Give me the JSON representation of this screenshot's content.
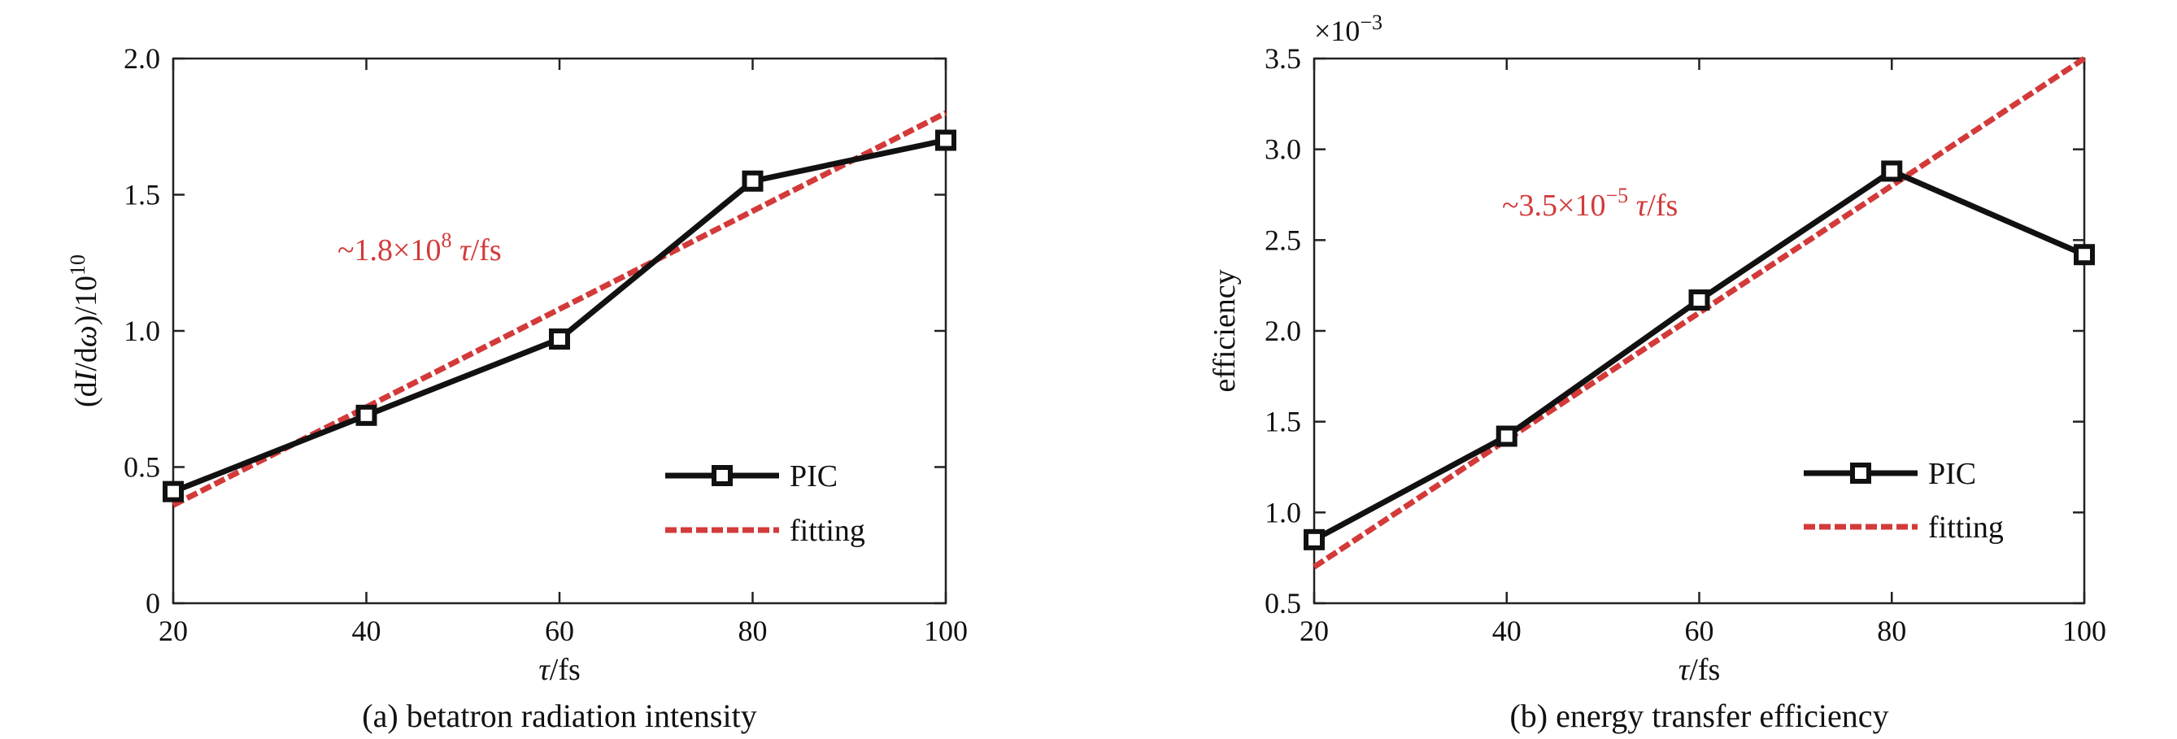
{
  "colors": {
    "pic": "#111111",
    "fitting": "#d33a3a",
    "annotation": "#d33a3a",
    "axes": "#222222"
  },
  "chart_data": [
    {
      "type": "line",
      "caption": "(a) betatron radiation intensity",
      "xlabel_italic": "τ",
      "xlabel_rest": "/fs",
      "ylabel_parts": [
        "(d",
        "I",
        "/d",
        "ω",
        ")/10",
        "10"
      ],
      "x": [
        20,
        40,
        60,
        80,
        100
      ],
      "xlim": [
        20,
        100
      ],
      "ylim": [
        0,
        2.0
      ],
      "xticks": [
        "20",
        "40",
        "60",
        "80",
        "100"
      ],
      "yticks": [
        0,
        0.5,
        1.0,
        1.5,
        2.0
      ],
      "ytick_labels": [
        "0",
        "0.5",
        "1.0",
        "1.5",
        "2.0"
      ],
      "series": [
        {
          "name": "PIC",
          "style": "solid-square-markers",
          "values": [
            0.41,
            0.69,
            0.97,
            1.55,
            1.7
          ]
        },
        {
          "name": "fitting",
          "style": "dashed",
          "x": [
            20,
            100
          ],
          "values": [
            0.36,
            1.8
          ]
        }
      ],
      "annotation": {
        "prefix": "~1.8×10",
        "sup": "8",
        "italic": " τ",
        "suffix": "/fs"
      },
      "exponent_label": null,
      "legend": {
        "position": "lower-right",
        "entries": [
          "PIC",
          "fitting"
        ]
      },
      "grid": false
    },
    {
      "type": "line",
      "caption": "(b) energy transfer efficiency",
      "xlabel_italic": "τ",
      "xlabel_rest": "/fs",
      "ylabel_text": "efficiency",
      "x": [
        20,
        40,
        60,
        80,
        100
      ],
      "xlim": [
        20,
        100
      ],
      "ylim": [
        0.5,
        3.5
      ],
      "xticks": [
        "20",
        "40",
        "60",
        "80",
        "100"
      ],
      "yticks": [
        0.5,
        1.0,
        1.5,
        2.0,
        2.5,
        3.0,
        3.5
      ],
      "ytick_labels": [
        "0.5",
        "1.0",
        "1.5",
        "2.0",
        "2.5",
        "3.0",
        "3.5"
      ],
      "series": [
        {
          "name": "PIC",
          "style": "solid-square-markers",
          "values": [
            0.85,
            1.42,
            2.17,
            2.88,
            2.42
          ]
        },
        {
          "name": "fitting",
          "style": "dashed",
          "x": [
            20,
            100
          ],
          "values": [
            0.7,
            3.5
          ]
        }
      ],
      "annotation": {
        "prefix": "~3.5×10",
        "sup": "−5",
        "italic": " τ",
        "suffix": "/fs"
      },
      "exponent_label": {
        "base": "×10",
        "sup": "−3"
      },
      "legend": {
        "position": "lower-right",
        "entries": [
          "PIC",
          "fitting"
        ]
      },
      "grid": false
    }
  ]
}
